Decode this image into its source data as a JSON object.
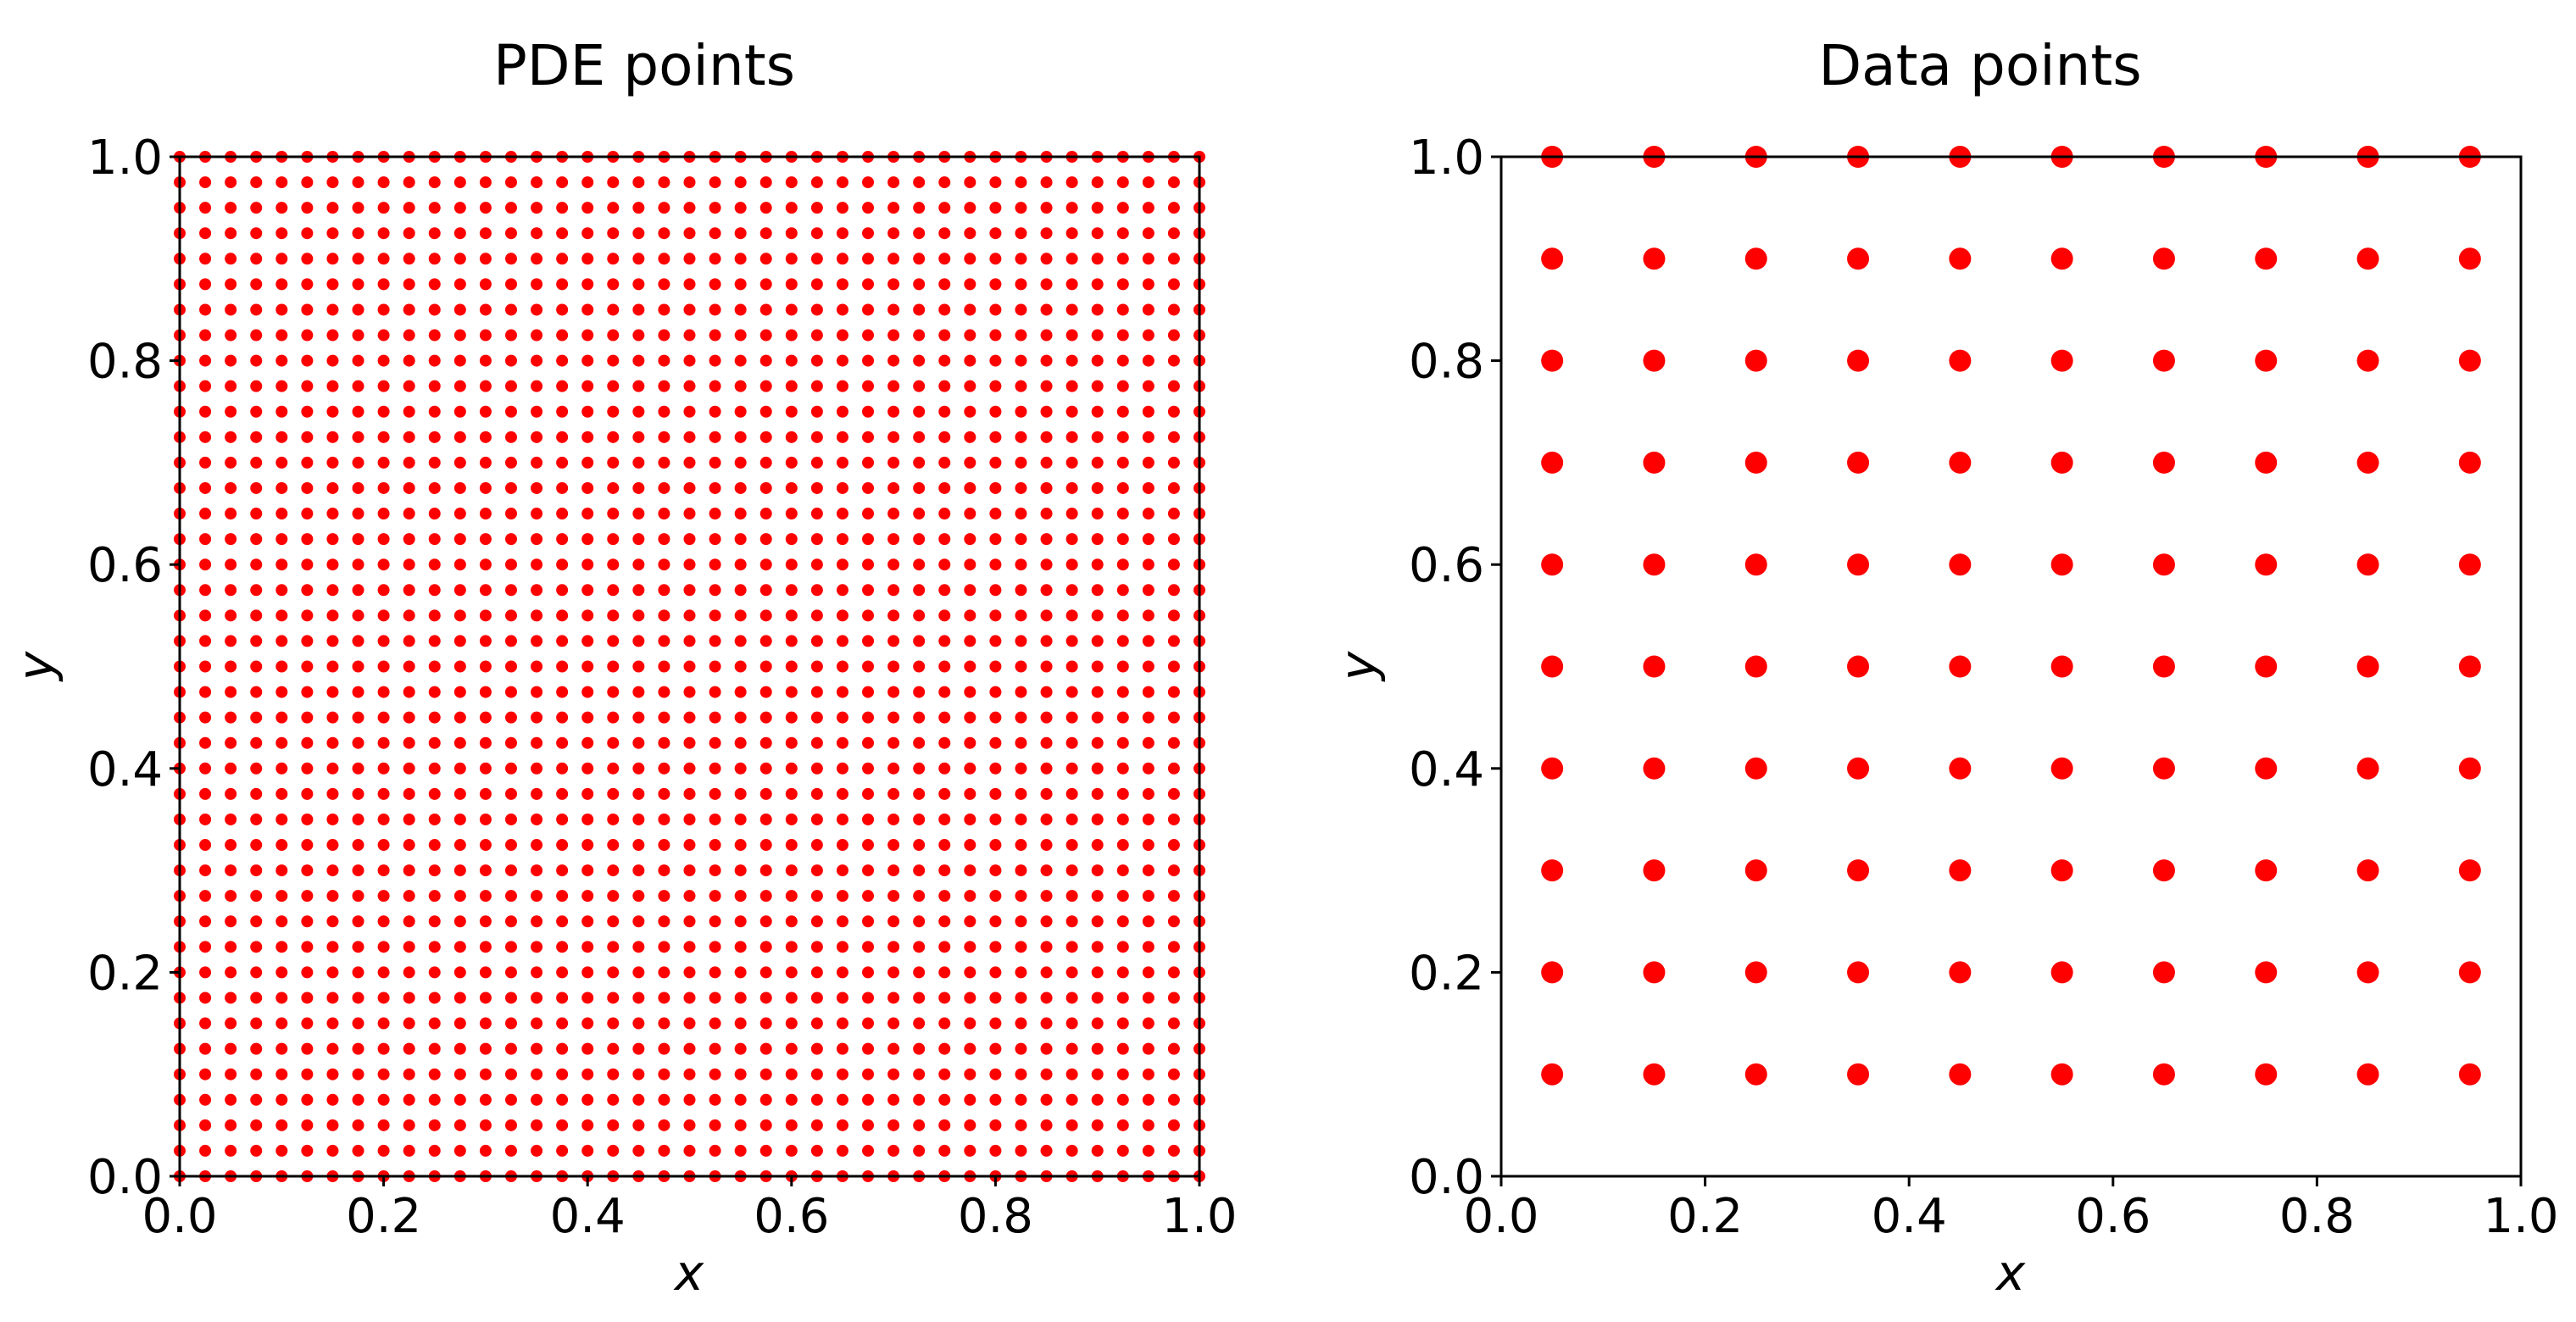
{
  "chart_data": [
    {
      "type": "scatter",
      "title": "PDE points",
      "xlabel": "x",
      "ylabel": "y",
      "xlim": [
        0.0,
        1.0
      ],
      "ylim": [
        0.0,
        1.0
      ],
      "grid": false,
      "marker_color": "#ff0000",
      "xticks": [
        "0.0",
        "0.2",
        "0.4",
        "0.6",
        "0.8",
        "1.0"
      ],
      "yticks": [
        "0.0",
        "0.2",
        "0.4",
        "0.6",
        "0.8",
        "1.0"
      ],
      "series": [
        {
          "grid_x": [
            0.0,
            0.025,
            0.05,
            0.075,
            0.1,
            0.125,
            0.15,
            0.175,
            0.2,
            0.225,
            0.25,
            0.275,
            0.3,
            0.325,
            0.35,
            0.375,
            0.4,
            0.425,
            0.45,
            0.475,
            0.5,
            0.525,
            0.55,
            0.575,
            0.6,
            0.625,
            0.65,
            0.675,
            0.7,
            0.725,
            0.75,
            0.775,
            0.8,
            0.825,
            0.85,
            0.875,
            0.9,
            0.925,
            0.95,
            0.975,
            1.0
          ],
          "grid_y": [
            0.0,
            0.025,
            0.05,
            0.075,
            0.1,
            0.125,
            0.15,
            0.175,
            0.2,
            0.225,
            0.25,
            0.275,
            0.3,
            0.325,
            0.35,
            0.375,
            0.4,
            0.425,
            0.45,
            0.475,
            0.5,
            0.525,
            0.55,
            0.575,
            0.6,
            0.625,
            0.65,
            0.675,
            0.7,
            0.725,
            0.75,
            0.775,
            0.8,
            0.825,
            0.85,
            0.875,
            0.9,
            0.925,
            0.95,
            0.975,
            1.0
          ]
        }
      ]
    },
    {
      "type": "scatter",
      "title": "Data points",
      "xlabel": "x",
      "ylabel": "y",
      "xlim": [
        0.0,
        1.0
      ],
      "ylim": [
        0.0,
        1.0
      ],
      "grid": false,
      "marker_color": "#ff0000",
      "xticks": [
        "0.0",
        "0.2",
        "0.4",
        "0.6",
        "0.8",
        "1.0"
      ],
      "yticks": [
        "0.0",
        "0.2",
        "0.4",
        "0.6",
        "0.8",
        "1.0"
      ],
      "series": [
        {
          "grid_x": [
            0.05,
            0.15,
            0.25,
            0.35,
            0.45,
            0.55,
            0.65,
            0.75,
            0.85,
            0.95
          ],
          "grid_y": [
            0.1,
            0.2,
            0.3,
            0.4,
            0.5,
            0.6,
            0.7,
            0.8,
            0.9,
            1.0
          ]
        }
      ]
    }
  ]
}
